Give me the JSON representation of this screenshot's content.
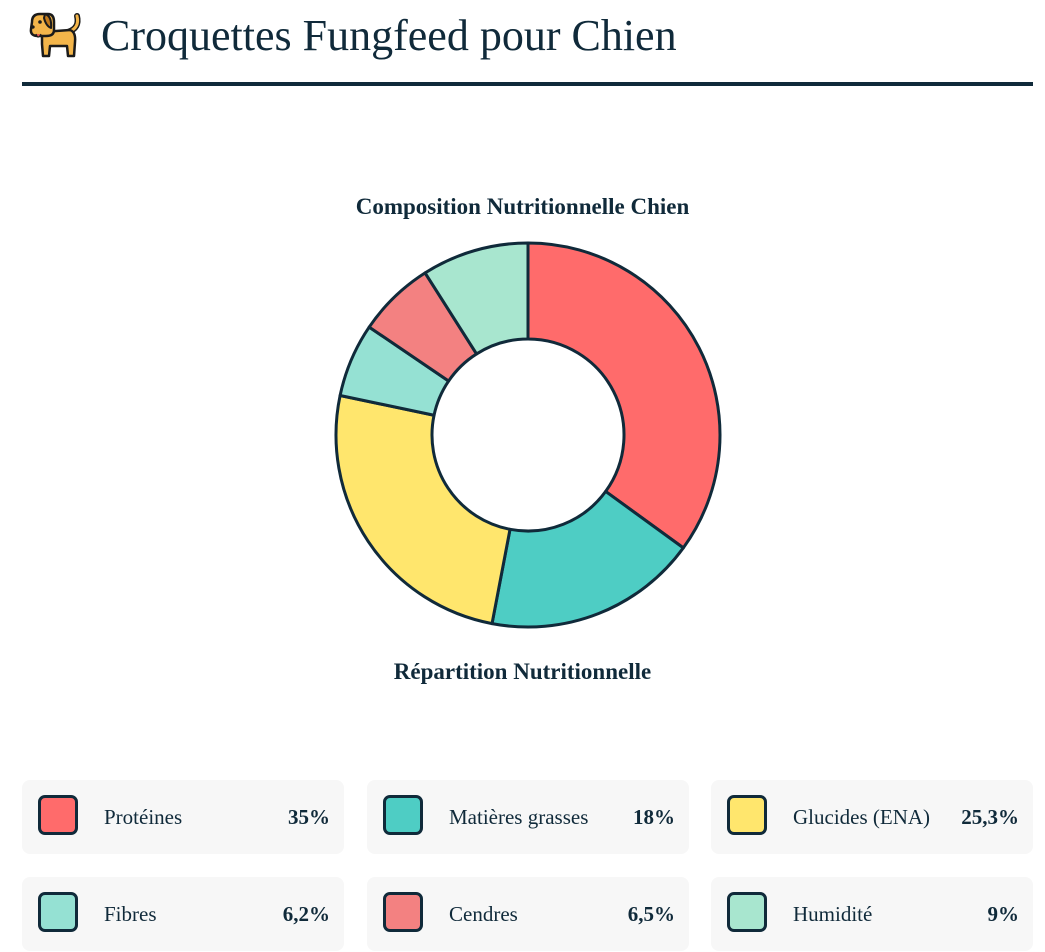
{
  "header": {
    "title": "Croquettes Fungfeed pour Chien",
    "icon": "dog-icon"
  },
  "chart_data": {
    "type": "pie",
    "title": "Composition Nutritionnelle Chien",
    "subtitle": "Répartition Nutritionnelle",
    "donut": true,
    "unit": "%",
    "categories": [
      "Protéines",
      "Matières grasses",
      "Glucides (ENA)",
      "Fibres",
      "Cendres",
      "Humidité"
    ],
    "values": [
      35,
      18,
      25.3,
      6.2,
      6.5,
      9
    ],
    "colors": [
      "#ff6b6b",
      "#4ecdc4",
      "#ffe66d",
      "#95e1d3",
      "#f38181",
      "#a8e6cf"
    ],
    "border_color": "#102a3a",
    "legend_placement": "bottom"
  },
  "legend": [
    {
      "label": "Protéines",
      "value": "35%",
      "color": "#ff6b6b"
    },
    {
      "label": "Matières grasses",
      "value": "18%",
      "color": "#4ecdc4"
    },
    {
      "label": "Glucides (ENA)",
      "value": "25,3%",
      "color": "#ffe66d"
    },
    {
      "label": "Fibres",
      "value": "6,2%",
      "color": "#95e1d3"
    },
    {
      "label": "Cendres",
      "value": "6,5%",
      "color": "#f38181"
    },
    {
      "label": "Humidité",
      "value": "9%",
      "color": "#a8e6cf"
    }
  ]
}
